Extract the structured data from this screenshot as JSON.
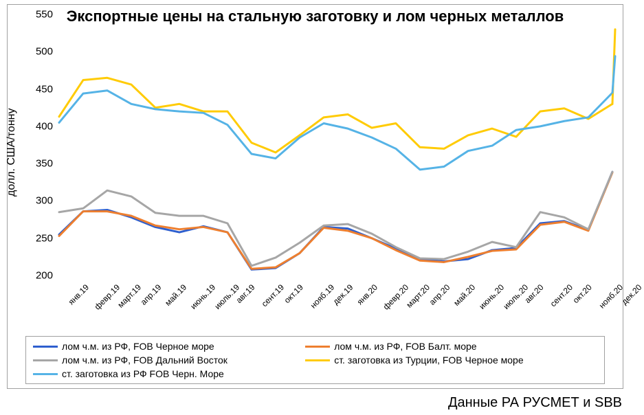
{
  "chart": {
    "type": "line",
    "title": "Экспортные цены на стальную заготовку и лом черных металлов",
    "ylabel": "долл. США/тонну",
    "source_note": "Данные РА РУСМЕТ и SBB",
    "title_fontsize": 22,
    "label_fontsize": 16,
    "tick_fontsize": 14,
    "xtick_fontsize": 12,
    "legend_fontsize": 14,
    "source_fontsize": 20,
    "background_color": "#ffffff",
    "border_color": "#a0a0a0",
    "text_color": "#000000",
    "grid_on": false,
    "ylim": [
      200,
      550
    ],
    "ytick_step": 50,
    "yticks": [
      200,
      250,
      300,
      350,
      400,
      450,
      500,
      550
    ],
    "xlabels": [
      "янв.19",
      "февр.19",
      "март.19",
      "апр.19",
      "май.19",
      "июнь.19",
      "июль.19",
      "авг.19",
      "сент.19",
      "окт.19",
      "нояб.19",
      "дек.19",
      "янв.20",
      "февр.20",
      "март.20",
      "апр.20",
      "май.20",
      "июнь.20",
      "июль.20",
      "авг.20",
      "сент.20",
      "окт.20",
      "нояб.20",
      "дек.20"
    ],
    "xtick_rotation_deg": -45,
    "line_width": 3,
    "series": [
      {
        "name": "лом ч.м. из РФ, FOB Черное море",
        "color": "#2e5fce",
        "values": [
          255,
          286,
          288,
          278,
          265,
          258,
          266,
          258,
          208,
          210,
          230,
          265,
          263,
          250,
          236,
          222,
          219,
          222,
          234,
          237,
          270,
          273,
          261,
          339
        ]
      },
      {
        "name": "лом ч.м. из РФ, FOB Балт. море",
        "color": "#ee7f2f",
        "values": [
          253,
          286,
          286,
          280,
          267,
          262,
          265,
          258,
          209,
          211,
          230,
          264,
          260,
          250,
          234,
          220,
          218,
          225,
          233,
          235,
          268,
          272,
          260,
          338
        ]
      },
      {
        "name": "лом ч.м. из РФ, FOB Дальний Восток",
        "color": "#a6a6a6",
        "values": [
          285,
          290,
          314,
          306,
          284,
          280,
          280,
          270,
          213,
          224,
          244,
          267,
          269,
          256,
          238,
          223,
          222,
          232,
          245,
          238,
          285,
          278,
          262,
          339
        ]
      },
      {
        "name": "ст. заготовка из Турции, FOB Черное море",
        "color": "#ffcb05",
        "values": [
          413,
          462,
          465,
          456,
          425,
          430,
          420,
          420,
          378,
          365,
          388,
          412,
          416,
          398,
          404,
          372,
          370,
          388,
          397,
          386,
          420,
          424,
          410,
          430
        ]
      },
      {
        "name": "ст. заготовка из РФ FOB Черн. Море",
        "color": "#55b3e6",
        "values": [
          405,
          444,
          448,
          430,
          423,
          420,
          418,
          402,
          363,
          357,
          385,
          404,
          397,
          385,
          370,
          342,
          346,
          367,
          374,
          395,
          400,
          407,
          412,
          445
        ]
      }
    ],
    "series_last_extra": [
      {
        "index": 3,
        "value": 530
      },
      {
        "index": 4,
        "value": 494
      }
    ],
    "legend_position": "bottom",
    "legend_columns": 2,
    "plot_aspect_w": 815,
    "plot_aspect_h": 380
  }
}
